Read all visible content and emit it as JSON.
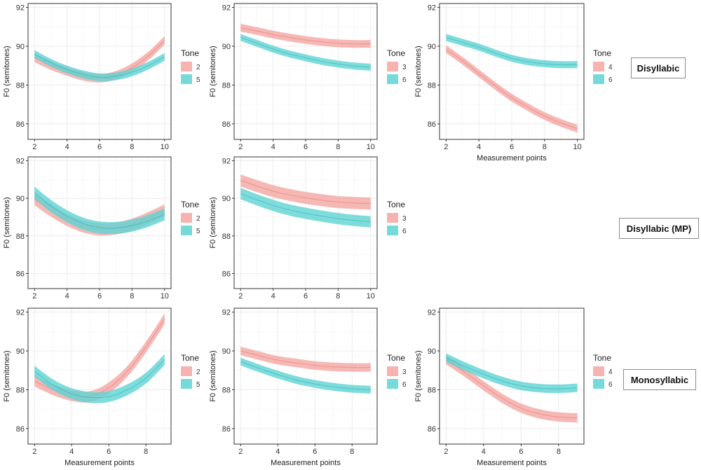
{
  "colors": {
    "pink": "#f4a6a2",
    "pink_edge": "#e9807a",
    "teal": "#5fd3d3",
    "teal_edge": "#35b8b8",
    "panel_border": "#333333",
    "grid": "#ebebeb"
  },
  "legend_title": "Tone",
  "row_labels": [
    "Disyllabic",
    "Disyllabic (MP)",
    "Monosyllabic"
  ],
  "chart_data": [
    {
      "type": "line",
      "row": 0,
      "col": 0,
      "ylabel": "F0 (semitones)",
      "xlabel": "",
      "xlim": [
        1.6,
        10.4
      ],
      "ylim": [
        85.2,
        92.2
      ],
      "x_ticks": [
        2,
        4,
        6,
        8,
        10
      ],
      "y_ticks": [
        86,
        88,
        90,
        92
      ],
      "legend": [
        "2",
        "5"
      ],
      "series": [
        {
          "name": "2",
          "color": "pink",
          "x": [
            2,
            3,
            4,
            5,
            6,
            7,
            8,
            9,
            10
          ],
          "y": [
            89.4,
            89.0,
            88.7,
            88.45,
            88.35,
            88.5,
            88.9,
            89.5,
            90.3
          ],
          "band": 0.22
        },
        {
          "name": "5",
          "color": "teal",
          "x": [
            2,
            3,
            4,
            5,
            6,
            7,
            8,
            9,
            10
          ],
          "y": [
            89.6,
            89.15,
            88.8,
            88.55,
            88.4,
            88.45,
            88.65,
            89.0,
            89.45
          ],
          "band": 0.2
        }
      ]
    },
    {
      "type": "line",
      "row": 0,
      "col": 1,
      "ylabel": "F0 (semitones)",
      "xlabel": "",
      "xlim": [
        1.6,
        10.4
      ],
      "ylim": [
        85.2,
        92.2
      ],
      "x_ticks": [
        2,
        4,
        6,
        8,
        10
      ],
      "y_ticks": [
        86,
        88,
        90,
        92
      ],
      "legend": [
        "3",
        "6"
      ],
      "series": [
        {
          "name": "3",
          "color": "pink",
          "x": [
            2,
            3,
            4,
            5,
            6,
            7,
            8,
            9,
            10
          ],
          "y": [
            90.95,
            90.78,
            90.6,
            90.45,
            90.32,
            90.22,
            90.15,
            90.12,
            90.12
          ],
          "band": 0.2
        },
        {
          "name": "6",
          "color": "teal",
          "x": [
            2,
            3,
            4,
            5,
            6,
            7,
            8,
            9,
            10
          ],
          "y": [
            90.45,
            90.15,
            89.85,
            89.6,
            89.4,
            89.22,
            89.08,
            88.98,
            88.92
          ],
          "band": 0.18
        }
      ]
    },
    {
      "type": "line",
      "row": 0,
      "col": 2,
      "ylabel": "F0 (semitones)",
      "xlabel": "Measurement points",
      "xlim": [
        1.6,
        10.4
      ],
      "ylim": [
        85.2,
        92.2
      ],
      "x_ticks": [
        2,
        4,
        6,
        8,
        10
      ],
      "y_ticks": [
        86,
        88,
        90,
        92
      ],
      "legend": [
        "4",
        "6"
      ],
      "series": [
        {
          "name": "4",
          "color": "pink",
          "x": [
            2,
            3,
            4,
            5,
            6,
            7,
            8,
            9,
            10
          ],
          "y": [
            89.85,
            89.25,
            88.6,
            87.95,
            87.35,
            86.85,
            86.4,
            86.05,
            85.75
          ],
          "band": 0.2
        },
        {
          "name": "6",
          "color": "teal",
          "x": [
            2,
            3,
            4,
            5,
            6,
            7,
            8,
            9,
            10
          ],
          "y": [
            90.45,
            90.2,
            89.95,
            89.65,
            89.38,
            89.2,
            89.1,
            89.05,
            89.05
          ],
          "band": 0.18
        }
      ]
    },
    {
      "type": "line",
      "row": 1,
      "col": 0,
      "ylabel": "F0 (semitones)",
      "xlabel": "",
      "xlim": [
        1.6,
        10.4
      ],
      "ylim": [
        85.2,
        92.2
      ],
      "x_ticks": [
        2,
        4,
        6,
        8,
        10
      ],
      "y_ticks": [
        86,
        88,
        90,
        92
      ],
      "legend": [
        "2",
        "5"
      ],
      "series": [
        {
          "name": "2",
          "color": "pink",
          "x": [
            2,
            3,
            4,
            5,
            6,
            7,
            8,
            9,
            10
          ],
          "y": [
            89.95,
            89.35,
            88.85,
            88.5,
            88.35,
            88.4,
            88.6,
            88.95,
            89.35
          ],
          "band": 0.32
        },
        {
          "name": "5",
          "color": "teal",
          "x": [
            2,
            3,
            4,
            5,
            6,
            7,
            8,
            9,
            10
          ],
          "y": [
            90.3,
            89.6,
            89.05,
            88.65,
            88.45,
            88.42,
            88.55,
            88.8,
            89.15
          ],
          "band": 0.32
        }
      ]
    },
    {
      "type": "line",
      "row": 1,
      "col": 1,
      "ylabel": "F0 (semitones)",
      "xlabel": "",
      "xlim": [
        1.6,
        10.4
      ],
      "ylim": [
        85.2,
        92.2
      ],
      "x_ticks": [
        2,
        4,
        6,
        8,
        10
      ],
      "y_ticks": [
        86,
        88,
        90,
        92
      ],
      "legend": [
        "3",
        "6"
      ],
      "series": [
        {
          "name": "3",
          "color": "pink",
          "x": [
            2,
            3,
            4,
            5,
            6,
            7,
            8,
            9,
            10
          ],
          "y": [
            90.95,
            90.65,
            90.38,
            90.18,
            90.02,
            89.9,
            89.8,
            89.75,
            89.72
          ],
          "band": 0.32
        },
        {
          "name": "6",
          "color": "teal",
          "x": [
            2,
            3,
            4,
            5,
            6,
            7,
            8,
            9,
            10
          ],
          "y": [
            90.25,
            89.92,
            89.62,
            89.38,
            89.2,
            89.05,
            88.92,
            88.82,
            88.75
          ],
          "band": 0.3
        }
      ]
    },
    {
      "type": "line",
      "row": 2,
      "col": 0,
      "ylabel": "F0 (semitones)",
      "xlabel": "Measurement points",
      "xlim": [
        1.65,
        9.35
      ],
      "ylim": [
        85.2,
        92.2
      ],
      "x_ticks": [
        2,
        4,
        6,
        8
      ],
      "y_ticks": [
        86,
        88,
        90,
        92
      ],
      "legend": [
        "2",
        "5"
      ],
      "series": [
        {
          "name": "2",
          "color": "pink",
          "x": [
            2,
            3,
            4,
            5,
            6,
            7,
            8,
            9
          ],
          "y": [
            88.45,
            88.0,
            87.7,
            87.65,
            88.1,
            88.95,
            90.2,
            91.65
          ],
          "band": 0.28
        },
        {
          "name": "5",
          "color": "teal",
          "x": [
            2,
            3,
            4,
            5,
            6,
            7,
            8,
            9
          ],
          "y": [
            88.95,
            88.25,
            87.8,
            87.6,
            87.65,
            88.0,
            88.6,
            89.55
          ],
          "band": 0.28
        }
      ]
    },
    {
      "type": "line",
      "row": 2,
      "col": 1,
      "ylabel": "F0 (semitones)",
      "xlabel": "Measurement points",
      "xlim": [
        1.65,
        9.35
      ],
      "ylim": [
        85.2,
        92.2
      ],
      "x_ticks": [
        2,
        4,
        6,
        8
      ],
      "y_ticks": [
        86,
        88,
        90,
        92
      ],
      "legend": [
        "3",
        "6"
      ],
      "series": [
        {
          "name": "3",
          "color": "pink",
          "x": [
            2,
            3,
            4,
            5,
            6,
            7,
            8,
            9
          ],
          "y": [
            90.0,
            89.75,
            89.52,
            89.38,
            89.25,
            89.18,
            89.15,
            89.15
          ],
          "band": 0.22
        },
        {
          "name": "6",
          "color": "teal",
          "x": [
            2,
            3,
            4,
            5,
            6,
            7,
            8,
            9
          ],
          "y": [
            89.45,
            89.1,
            88.78,
            88.5,
            88.3,
            88.15,
            88.05,
            88.0
          ],
          "band": 0.2
        }
      ]
    },
    {
      "type": "line",
      "row": 2,
      "col": 2,
      "ylabel": "F0 (semitones)",
      "xlabel": "Measurement points",
      "xlim": [
        1.65,
        9.35
      ],
      "ylim": [
        85.2,
        92.2
      ],
      "x_ticks": [
        2,
        4,
        6,
        8
      ],
      "y_ticks": [
        86,
        88,
        90,
        92
      ],
      "legend": [
        "4",
        "6"
      ],
      "series": [
        {
          "name": "4",
          "color": "pink",
          "x": [
            2,
            3,
            4,
            5,
            6,
            7,
            8,
            9
          ],
          "y": [
            89.55,
            88.9,
            88.2,
            87.55,
            87.05,
            86.75,
            86.6,
            86.55
          ],
          "band": 0.24
        },
        {
          "name": "6",
          "color": "teal",
          "x": [
            2,
            3,
            4,
            5,
            6,
            7,
            8,
            9
          ],
          "y": [
            89.65,
            89.2,
            88.8,
            88.45,
            88.2,
            88.08,
            88.05,
            88.1
          ],
          "band": 0.22
        }
      ]
    }
  ]
}
